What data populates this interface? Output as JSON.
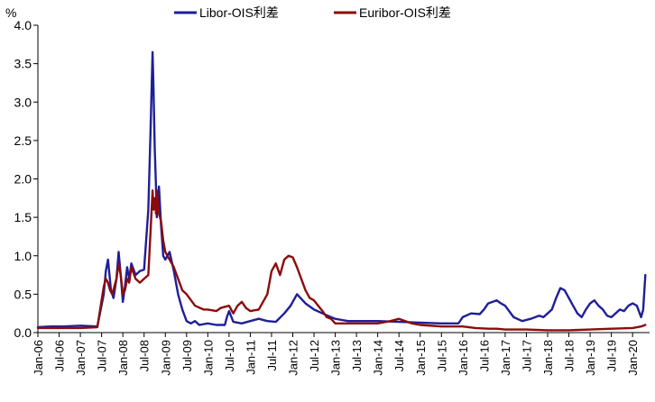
{
  "chart_data": {
    "type": "line",
    "ylabel": "%",
    "ylim": [
      0,
      4.0
    ],
    "yticks": [
      "0.0",
      "0.5",
      "1.0",
      "1.5",
      "2.0",
      "2.5",
      "3.0",
      "3.5",
      "4.0"
    ],
    "xlim": [
      2006.0,
      2020.4
    ],
    "xticks": [
      "Jan-06",
      "Jul-06",
      "Jan-07",
      "Jul-07",
      "Jan-08",
      "Jul-08",
      "Jan-09",
      "Jul-09",
      "Jan-10",
      "Jul-10",
      "Jan-11",
      "Jul-11",
      "Jan-12",
      "Jul-12",
      "Jan-13",
      "Jul-13",
      "Jan-14",
      "Jul-14",
      "Jan-15",
      "Jul-15",
      "Jan-16",
      "Jul-16",
      "Jan-17",
      "Jul-17",
      "Jan-18",
      "Jul-18",
      "Jan-19",
      "Jul-19",
      "Jan-20"
    ],
    "legend_position": "top",
    "series": [
      {
        "name": "Libor-OIS利差",
        "color": "#1f1f9a",
        "x": [
          2006.0,
          2006.3,
          2006.6,
          2007.0,
          2007.4,
          2007.55,
          2007.6,
          2007.65,
          2007.72,
          2007.78,
          2007.85,
          2007.9,
          2007.95,
          2008.0,
          2008.05,
          2008.1,
          2008.15,
          2008.2,
          2008.3,
          2008.4,
          2008.5,
          2008.6,
          2008.65,
          2008.7,
          2008.72,
          2008.75,
          2008.78,
          2008.8,
          2008.85,
          2008.9,
          2008.95,
          2009.0,
          2009.1,
          2009.2,
          2009.3,
          2009.4,
          2009.5,
          2009.6,
          2009.7,
          2009.8,
          2010.0,
          2010.2,
          2010.4,
          2010.45,
          2010.5,
          2010.6,
          2010.8,
          2011.0,
          2011.2,
          2011.4,
          2011.6,
          2011.8,
          2011.95,
          2012.1,
          2012.3,
          2012.5,
          2012.7,
          2012.9,
          2013.0,
          2013.3,
          2013.6,
          2014.0,
          2014.5,
          2015.0,
          2015.5,
          2015.9,
          2016.0,
          2016.2,
          2016.4,
          2016.5,
          2016.6,
          2016.8,
          2016.9,
          2017.0,
          2017.2,
          2017.4,
          2017.6,
          2017.8,
          2017.9,
          2018.0,
          2018.1,
          2018.2,
          2018.3,
          2018.4,
          2018.5,
          2018.6,
          2018.7,
          2018.8,
          2018.9,
          2019.0,
          2019.1,
          2019.2,
          2019.3,
          2019.4,
          2019.5,
          2019.6,
          2019.7,
          2019.8,
          2019.9,
          2020.0,
          2020.1,
          2020.2,
          2020.25,
          2020.3
        ],
        "values": [
          0.07,
          0.08,
          0.08,
          0.09,
          0.08,
          0.5,
          0.8,
          0.95,
          0.55,
          0.45,
          0.7,
          1.05,
          0.75,
          0.4,
          0.6,
          0.85,
          0.7,
          0.9,
          0.75,
          0.8,
          0.82,
          1.6,
          2.6,
          3.65,
          3.2,
          2.4,
          1.9,
          1.5,
          1.9,
          1.4,
          1.0,
          0.95,
          1.05,
          0.8,
          0.5,
          0.3,
          0.15,
          0.12,
          0.15,
          0.1,
          0.12,
          0.1,
          0.1,
          0.2,
          0.28,
          0.14,
          0.12,
          0.15,
          0.18,
          0.15,
          0.14,
          0.25,
          0.35,
          0.5,
          0.38,
          0.3,
          0.25,
          0.2,
          0.18,
          0.15,
          0.15,
          0.15,
          0.14,
          0.13,
          0.12,
          0.12,
          0.2,
          0.25,
          0.24,
          0.3,
          0.38,
          0.42,
          0.38,
          0.35,
          0.2,
          0.15,
          0.18,
          0.22,
          0.2,
          0.25,
          0.3,
          0.45,
          0.58,
          0.55,
          0.45,
          0.35,
          0.25,
          0.2,
          0.3,
          0.38,
          0.42,
          0.35,
          0.3,
          0.22,
          0.2,
          0.25,
          0.3,
          0.28,
          0.35,
          0.38,
          0.35,
          0.2,
          0.3,
          0.75
        ]
      },
      {
        "name": "Euribor-OIS利差",
        "color": "#8b0c0c",
        "x": [
          2006.0,
          2006.5,
          2007.0,
          2007.4,
          2007.55,
          2007.6,
          2007.65,
          2007.7,
          2007.75,
          2007.85,
          2007.9,
          2007.95,
          2008.0,
          2008.05,
          2008.1,
          2008.15,
          2008.2,
          2008.3,
          2008.4,
          2008.5,
          2008.6,
          2008.65,
          2008.7,
          2008.72,
          2008.75,
          2008.78,
          2008.8,
          2008.85,
          2008.9,
          2008.95,
          2009.0,
          2009.1,
          2009.2,
          2009.3,
          2009.4,
          2009.5,
          2009.7,
          2009.9,
          2010.0,
          2010.2,
          2010.3,
          2010.5,
          2010.6,
          2010.7,
          2010.8,
          2010.9,
          2011.0,
          2011.2,
          2011.4,
          2011.5,
          2011.6,
          2011.7,
          2011.8,
          2011.9,
          2012.0,
          2012.1,
          2012.2,
          2012.3,
          2012.4,
          2012.5,
          2012.6,
          2012.7,
          2012.8,
          2012.9,
          2013.0,
          2013.5,
          2014.0,
          2014.3,
          2014.5,
          2014.8,
          2015.0,
          2015.5,
          2016.0,
          2016.3,
          2016.6,
          2016.8,
          2017.0,
          2017.5,
          2018.0,
          2018.5,
          2019.0,
          2019.5,
          2020.0,
          2020.2,
          2020.3
        ],
        "values": [
          0.06,
          0.06,
          0.06,
          0.07,
          0.6,
          0.7,
          0.65,
          0.55,
          0.5,
          0.7,
          0.9,
          0.75,
          0.5,
          0.55,
          0.7,
          0.65,
          0.85,
          0.7,
          0.65,
          0.7,
          0.75,
          1.3,
          1.85,
          1.6,
          1.75,
          1.55,
          1.85,
          1.55,
          1.45,
          1.2,
          1.05,
          0.95,
          0.85,
          0.7,
          0.55,
          0.5,
          0.35,
          0.3,
          0.3,
          0.28,
          0.32,
          0.35,
          0.25,
          0.35,
          0.4,
          0.32,
          0.28,
          0.3,
          0.5,
          0.8,
          0.9,
          0.75,
          0.95,
          1.0,
          0.98,
          0.85,
          0.7,
          0.55,
          0.45,
          0.42,
          0.35,
          0.28,
          0.2,
          0.18,
          0.12,
          0.12,
          0.12,
          0.15,
          0.18,
          0.12,
          0.1,
          0.08,
          0.08,
          0.06,
          0.05,
          0.05,
          0.04,
          0.04,
          0.03,
          0.03,
          0.04,
          0.05,
          0.06,
          0.08,
          0.1
        ]
      }
    ]
  }
}
